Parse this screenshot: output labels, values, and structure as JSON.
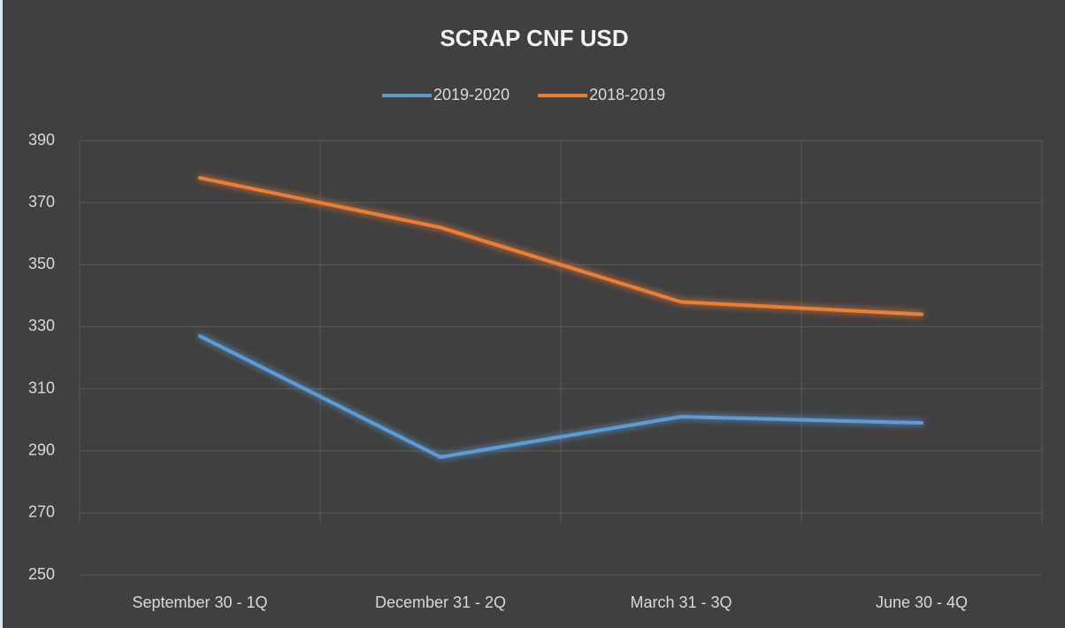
{
  "chart_data": {
    "type": "line",
    "title": "SCRAP CNF USD",
    "categories": [
      "September 30 - 1Q",
      "December 31 - 2Q",
      "March 31 - 3Q",
      "June 30 - 4Q"
    ],
    "series": [
      {
        "name": "2019-2020",
        "color": "#5b9bd5",
        "values": [
          327,
          288,
          301,
          299
        ]
      },
      {
        "name": "2018-2019",
        "color": "#ed7d31",
        "values": [
          378,
          362,
          338,
          334
        ]
      }
    ],
    "ylim": [
      250,
      390
    ],
    "yticks": [
      250,
      270,
      290,
      310,
      330,
      350,
      370,
      390
    ],
    "grid": true,
    "legend": "top"
  }
}
